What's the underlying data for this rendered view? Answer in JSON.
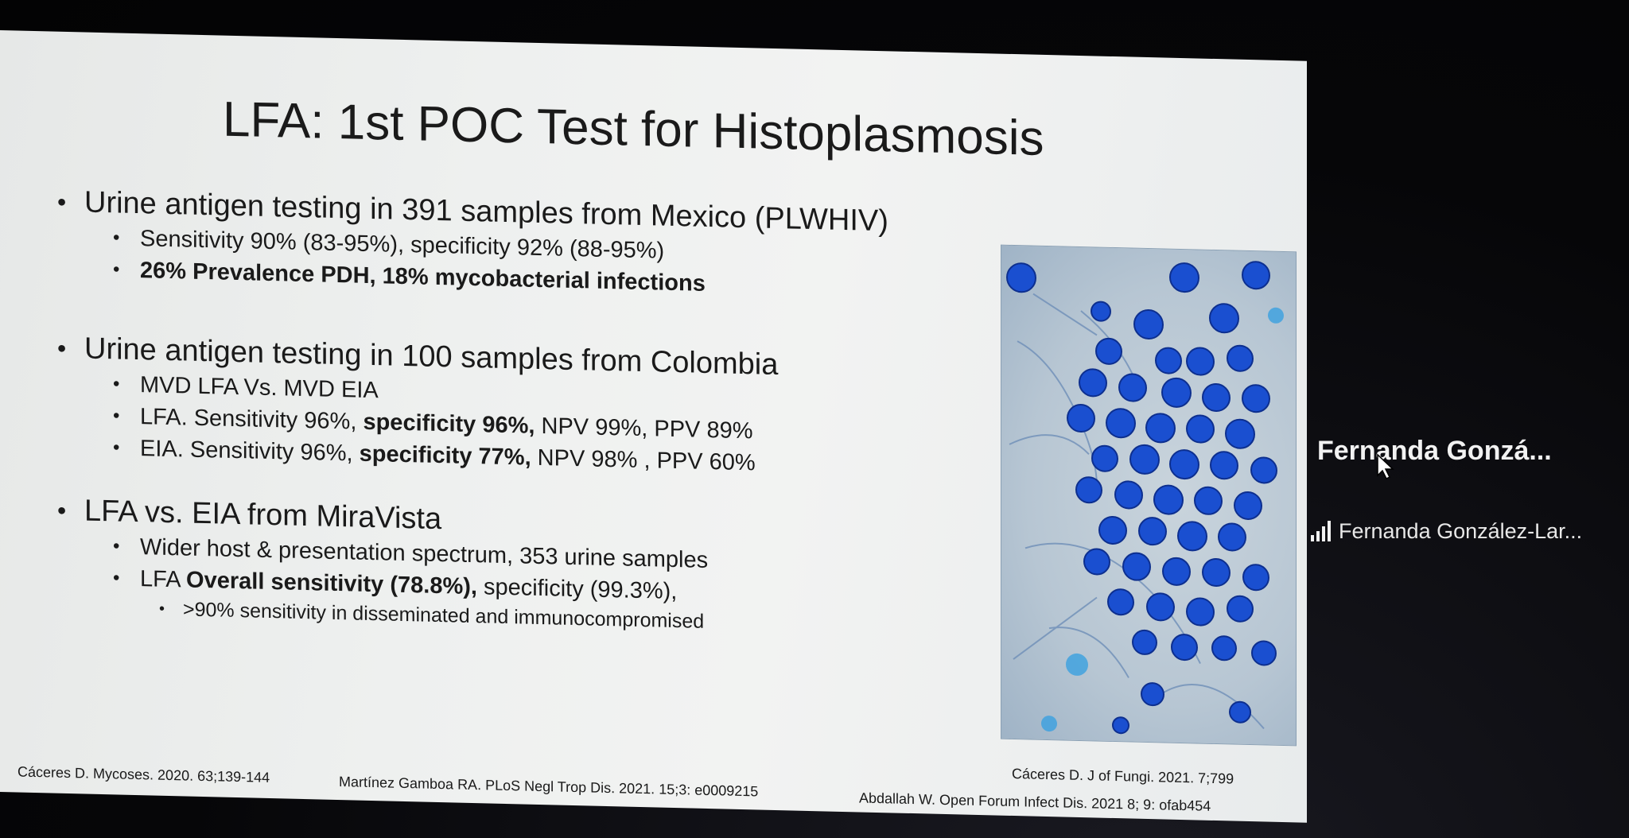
{
  "slide": {
    "title": "LFA: 1st POC Test for Histoplasmosis",
    "sections": [
      {
        "heading": "Urine antigen testing in 391 samples from Mexico (PLWHIV)",
        "items": [
          "Sensitivity 90% (83-95%), specificity 92% (88-95%)",
          "26% Prevalence PDH, 18% mycobacterial infections"
        ]
      },
      {
        "heading": "Urine antigen testing in 100 samples from Colombia",
        "items": [
          "MVD LFA Vs. MVD EIA",
          {
            "a": "LFA. Sensitivity 96%, ",
            "b": "specificity 96%,",
            "c": " NPV 99%, PPV 89%"
          },
          {
            "a": "EIA. Sensitivity 96%, ",
            "b": "specificity 77%,",
            "c": " NPV 98% , PPV 60%"
          }
        ]
      },
      {
        "heading": "LFA vs. EIA from MiraVista",
        "items": [
          "Wider host & presentation spectrum, 353 urine samples",
          {
            "a": "LFA ",
            "b": "Overall sensitivity (78.8%),",
            "c": " specificity (99.3%),"
          }
        ],
        "subitems": [
          ">90% sensitivity in disseminated and immunocompromised"
        ]
      }
    ],
    "references": {
      "image_credit": "Cáceres D. J of Fungi. 2021. 7;799",
      "ref1": "Cáceres D. Mycoses. 2020. 63;139-144",
      "ref2": "Martínez Gamboa RA. PLoS Negl Trop Dis. 2021. 15;3: e0009215",
      "ref3": "Abdallah W. Open Forum Infect Dis. 2021 8; 9: ofab454"
    },
    "image": {
      "subject": "microscopy-histoplasma-stain",
      "stain_color": "#1a5fd6"
    }
  },
  "participant": {
    "tile_name": "Fernanda Gonzá...",
    "display_name": "Fernanda González-Lar...",
    "icon": "signal-bars-icon"
  },
  "colors": {
    "background": "#050507",
    "slide": "#eef0ef",
    "text": "#1a1a1a"
  }
}
